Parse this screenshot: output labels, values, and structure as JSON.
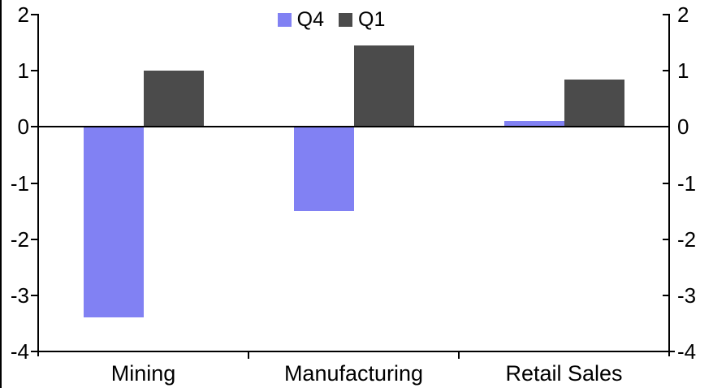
{
  "chart_data": {
    "type": "bar",
    "title": "",
    "xlabel": "",
    "ylabel": "",
    "categories": [
      "Mining",
      "Manufacturing",
      "Retail Sales"
    ],
    "series": [
      {
        "name": "Q4",
        "color": "#8181F3",
        "values": [
          -3.4,
          -1.5,
          0.1
        ]
      },
      {
        "name": "Q1",
        "color": "#4B4B4B",
        "values": [
          1.0,
          1.45,
          0.85
        ]
      }
    ],
    "ylim": [
      -4,
      2
    ],
    "yticks": [
      "2",
      "1",
      "0",
      "-1",
      "-2",
      "-3",
      "-4"
    ],
    "y_axis_sides": "both",
    "legend_position": "top-center",
    "grid": false,
    "axis_color": "#000000",
    "background_color": "#FFFFFF"
  }
}
